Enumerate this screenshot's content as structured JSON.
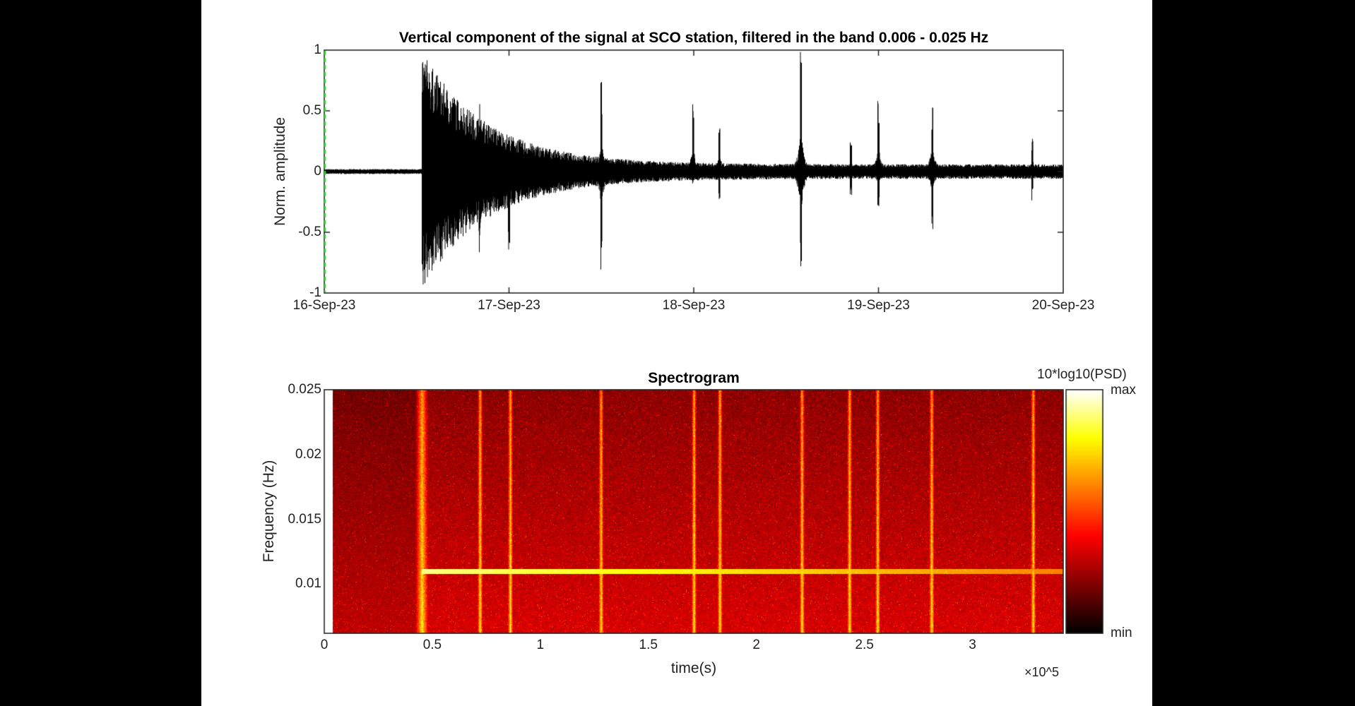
{
  "chart_data": [
    {
      "type": "line",
      "title": "Vertical component of the signal at SCO station, filtered in the band 0.006 - 0.025 Hz",
      "xlabel": "",
      "ylabel": "Norm. amplitude",
      "xlim": [
        "16-Sep-23",
        "20-Sep-23"
      ],
      "ylim": [
        -1,
        1
      ],
      "x_ticks": [
        "16-Sep-23",
        "17-Sep-23",
        "18-Sep-23",
        "19-Sep-23",
        "20-Sep-23"
      ],
      "y_ticks": [
        "1",
        "0.5",
        "0",
        "-0.5",
        "-1"
      ],
      "series_color": "#000000",
      "marker_line_color": "#33dd33",
      "background_amplitude_before_onset": 0.02,
      "events": [
        {
          "time": "2023-09-16 12:40",
          "peak_pos": 1.0,
          "peak_neg": -0.97,
          "decay_days": 0.35
        },
        {
          "time": "2023-09-16 20:10",
          "peak_pos": 0.65,
          "peak_neg": -0.82
        },
        {
          "time": "2023-09-17 00:00",
          "peak_pos": 0.05,
          "peak_neg": -0.67
        },
        {
          "time": "2023-09-17 12:00",
          "peak_pos": 0.8,
          "peak_neg": -0.88
        },
        {
          "time": "2023-09-17 23:55",
          "peak_pos": 0.6,
          "peak_neg": -0.1
        },
        {
          "time": "2023-09-18 03:20",
          "peak_pos": 0.43,
          "peak_neg": -0.27
        },
        {
          "time": "2023-09-18 13:55",
          "peak_pos": 1.0,
          "peak_neg": -1.0
        },
        {
          "time": "2023-09-18 20:25",
          "peak_pos": 0.25,
          "peak_neg": -0.2
        },
        {
          "time": "2023-09-19 00:00",
          "peak_pos": 0.6,
          "peak_neg": -0.35
        },
        {
          "time": "2023-09-19 07:00",
          "peak_pos": 0.62,
          "peak_neg": -0.5
        },
        {
          "time": "2023-09-19 20:00",
          "peak_pos": 0.3,
          "peak_neg": -0.25
        }
      ],
      "coda_level_end": 0.06
    },
    {
      "type": "heatmap",
      "title": "Spectrogram",
      "xlabel": "time(s)",
      "ylabel": "Frequency (Hz)",
      "x_multiplier": "×10^5",
      "xlim": [
        0,
        3.42
      ],
      "ylim": [
        0.0062,
        0.025
      ],
      "x_ticks": [
        "0",
        "0.5",
        "1",
        "1.5",
        "2",
        "2.5",
        "3"
      ],
      "y_ticks": [
        "0.025",
        "0.02",
        "0.015",
        "0.01"
      ],
      "colormap": "hot",
      "colorbar_label": "10*log10(PSD)",
      "colorbar_max": "max",
      "colorbar_min": "min",
      "tonal_line": {
        "frequency_hz": 0.011,
        "start_1e5s": 0.45,
        "end_1e5s": 3.42
      },
      "broadband_events_1e5s": [
        0.45,
        0.72,
        0.86,
        1.28,
        1.71,
        1.83,
        2.21,
        2.43,
        2.56,
        2.81,
        3.28
      ]
    }
  ]
}
